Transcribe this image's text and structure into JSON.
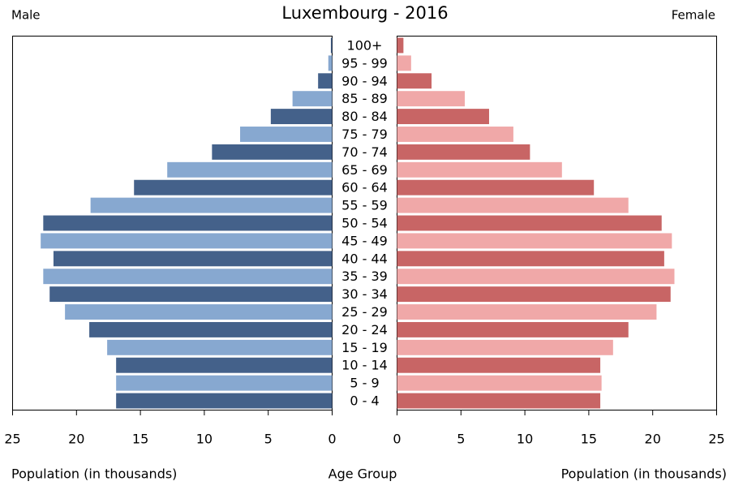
{
  "chart_data": {
    "type": "pyramid",
    "title": "Luxembourg - 2016",
    "xlabel": "Population (in thousands)",
    "category_label": "Age Group",
    "categories": [
      "100+",
      "95 - 99",
      "90 - 94",
      "85 - 89",
      "80 - 84",
      "75 - 79",
      "70 - 74",
      "65 - 69",
      "60 - 64",
      "55 - 59",
      "50 - 54",
      "45 - 49",
      "40 - 44",
      "35 - 39",
      "30 - 34",
      "25 - 29",
      "20 - 24",
      "15 - 19",
      "10 - 14",
      "5 - 9",
      "0 - 4"
    ],
    "series": [
      {
        "name": "Male",
        "colors": [
          "#44618a",
          "#87a8d0"
        ],
        "values": [
          0.1,
          0.3,
          1.1,
          3.1,
          4.8,
          7.2,
          9.4,
          12.9,
          15.5,
          18.9,
          22.6,
          22.8,
          21.8,
          22.6,
          22.1,
          20.9,
          19.0,
          17.6,
          16.9,
          16.9,
          16.9
        ]
      },
      {
        "name": "Female",
        "colors": [
          "#c86565",
          "#f0a8a8"
        ],
        "values": [
          0.5,
          1.1,
          2.7,
          5.3,
          7.2,
          9.1,
          10.4,
          12.9,
          15.4,
          18.1,
          20.7,
          21.5,
          20.9,
          21.7,
          21.4,
          20.3,
          18.1,
          16.9,
          15.9,
          16.0,
          15.9
        ]
      }
    ],
    "xlim": [
      0,
      25
    ],
    "xticks": [
      0,
      5,
      10,
      15,
      20,
      25
    ]
  }
}
